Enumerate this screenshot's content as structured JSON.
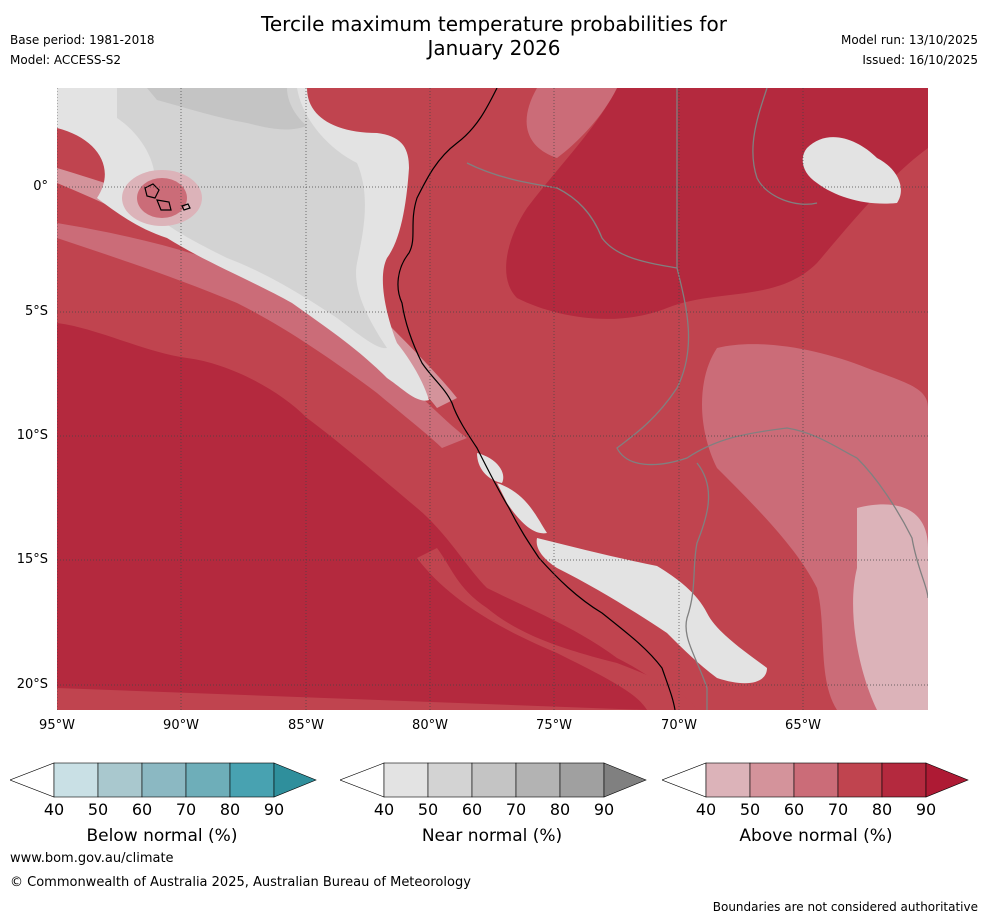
{
  "header": {
    "title_line1": "Tercile maximum temperature probabilities for",
    "title_line2": "January 2026",
    "base_period": "Base period: 1981-2018",
    "model": "Model: ACCESS-S2",
    "model_run": "Model run: 13/10/2025",
    "issued": "Issued: 16/10/2025"
  },
  "map": {
    "lat_labels": [
      "0°",
      "5°S",
      "10°S",
      "15°S",
      "20°S"
    ],
    "lon_labels": [
      "95°W",
      "90°W",
      "85°W",
      "80°W",
      "75°W",
      "70°W",
      "65°W"
    ],
    "colors": {
      "above_40": "#dcb3b9",
      "above_50": "#d4939b",
      "above_60": "#cb6c78",
      "above_70": "#c0444f",
      "above_80": "#b4293e",
      "near_40": "#e3e3e3",
      "near_50": "#d3d3d3",
      "near_60": "#c4c4c4",
      "coast": "#000000",
      "border": "#808080"
    }
  },
  "legend": {
    "below": {
      "label": "Below normal (%)",
      "ticks": [
        "40",
        "50",
        "60",
        "70",
        "80",
        "90"
      ],
      "colors": [
        "#ffffff",
        "#c9e0e5",
        "#a9c8ce",
        "#8bb8c2",
        "#6eaeb9",
        "#48a2b1",
        "#2f8f9c"
      ]
    },
    "near": {
      "label": "Near normal (%)",
      "ticks": [
        "40",
        "50",
        "60",
        "70",
        "80",
        "90"
      ],
      "colors": [
        "#ffffff",
        "#e3e3e3",
        "#d3d3d3",
        "#c4c4c4",
        "#b3b3b3",
        "#a0a0a0",
        "#808080"
      ]
    },
    "above": {
      "label": "Above normal (%)",
      "ticks": [
        "40",
        "50",
        "60",
        "70",
        "80",
        "90"
      ],
      "colors": [
        "#ffffff",
        "#dcb3b9",
        "#d4939b",
        "#cb6c78",
        "#c0444f",
        "#b4293e",
        "#ae1a34"
      ]
    }
  },
  "footer": {
    "url": "www.bom.gov.au/climate",
    "copyright": "© Commonwealth of Australia 2025, Australian Bureau of Meteorology",
    "disclaimer": "Boundaries are not considered authoritative"
  }
}
